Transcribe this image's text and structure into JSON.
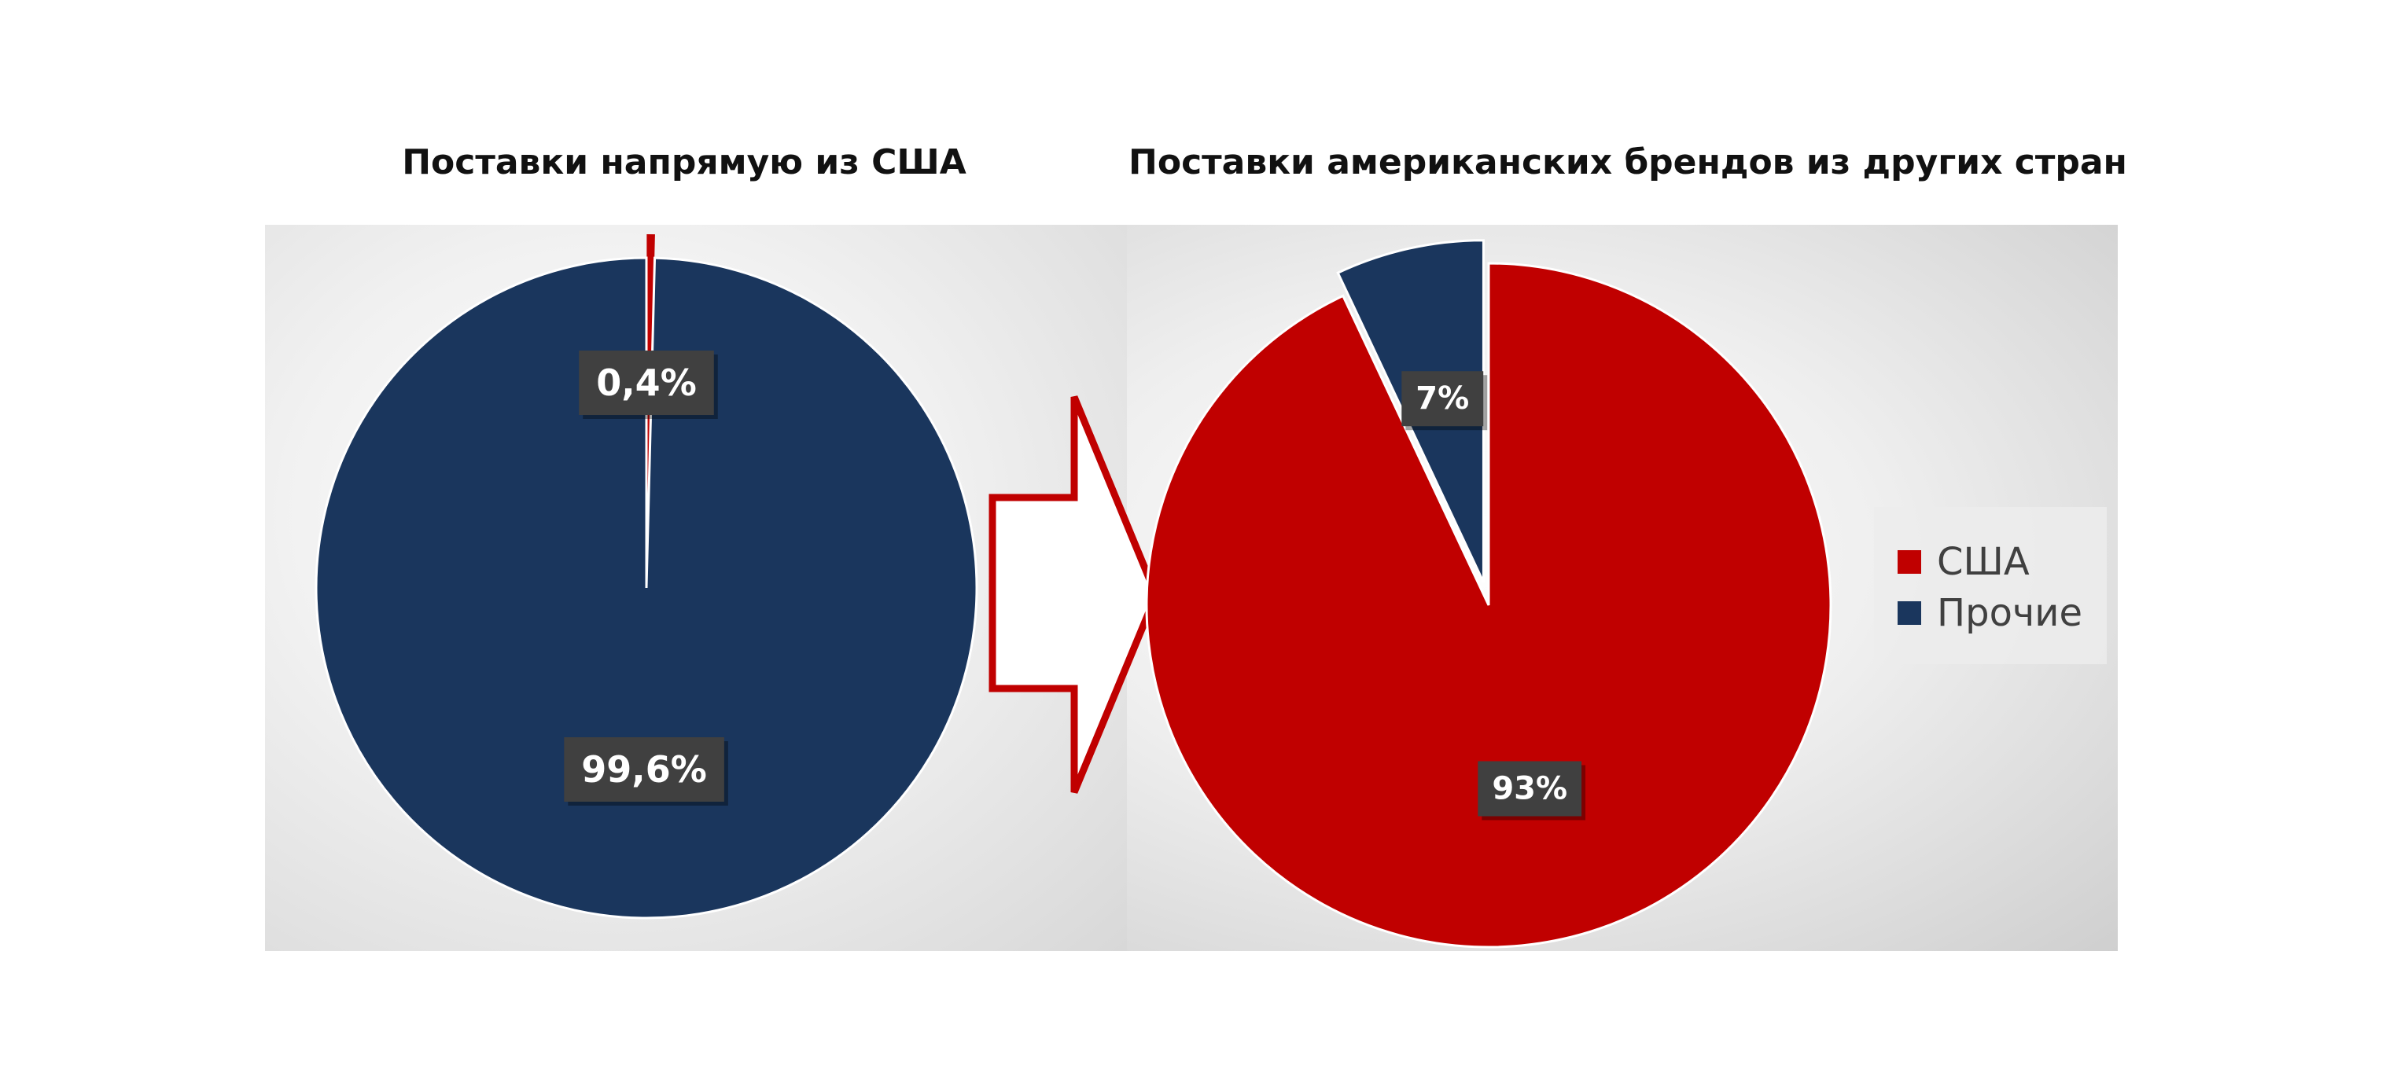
{
  "colors": {
    "usa": "#c00000",
    "other": "#1a365d",
    "label_bg": "#404040",
    "label_text": "#ffffff",
    "arrow": "#c00000"
  },
  "legend": [
    {
      "label": "США",
      "color": "#c00000"
    },
    {
      "label": "Прочие",
      "color": "#1a365d"
    }
  ],
  "chart_data": [
    {
      "type": "pie",
      "title": "Поставки напрямую из США",
      "slices": [
        {
          "name": "США",
          "value": 0.4,
          "label": "0,4%",
          "color": "#c00000"
        },
        {
          "name": "Прочие",
          "value": 99.6,
          "label": "99,6%",
          "color": "#1a365d"
        }
      ],
      "start_angle_deg": 0,
      "exploded": "США"
    },
    {
      "type": "pie",
      "title": "Поставки американских брендов из других стран",
      "slices": [
        {
          "name": "США",
          "value": 93,
          "label": "93%",
          "color": "#c00000"
        },
        {
          "name": "Прочие",
          "value": 7,
          "label": "7%",
          "color": "#1a365d"
        }
      ],
      "start_angle_deg": 0,
      "exploded": "Прочие"
    }
  ]
}
